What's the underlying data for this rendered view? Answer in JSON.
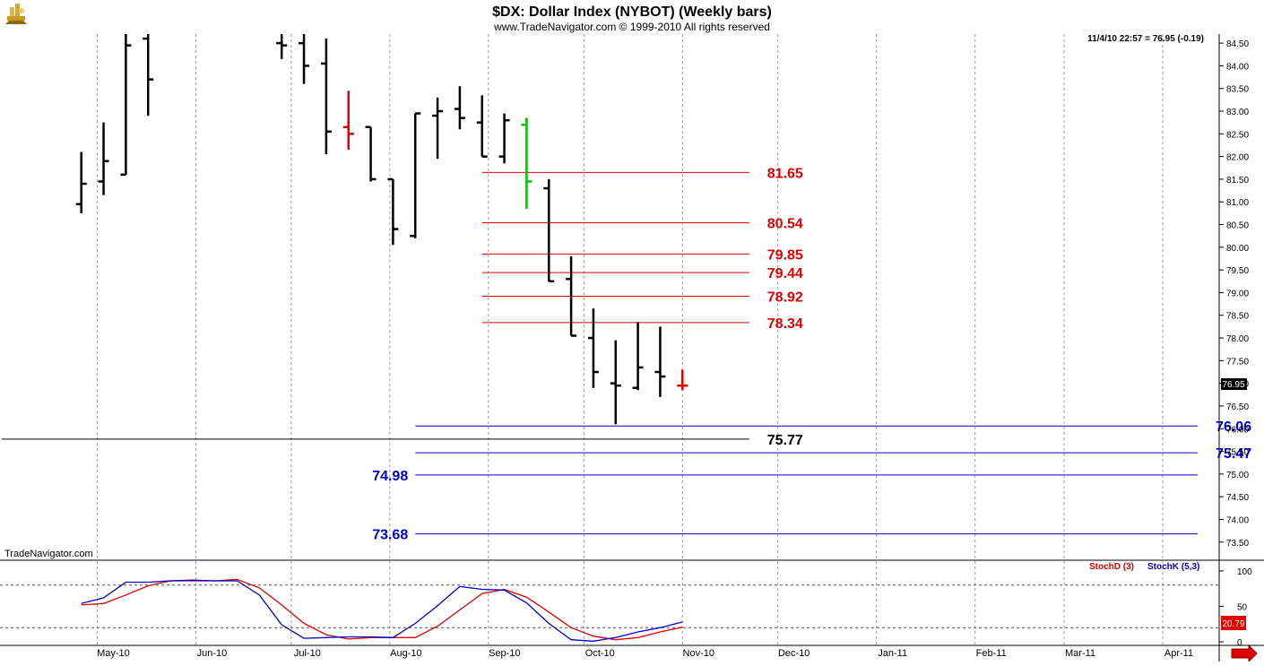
{
  "header": {
    "title": "$DX:  Dollar Index (NYBOT)  (Weekly bars)",
    "copyright": "www.TradeNavigator.com © 1999-2010 All rights reserved",
    "quote": "11/4/10 22:57 = 76.95 (-0.19)",
    "watermark": "TradeNavigator.com",
    "last_price_label": "76.95"
  },
  "colors": {
    "bar": "#000000",
    "bar_up": "#00c000",
    "bar_down": "#e00000",
    "resistance": "#e00000",
    "support": "#0000cc",
    "black_line": "#000000",
    "stoch_d": "#e00000",
    "stoch_k": "#0000cc",
    "grid": "#9a9a9a"
  },
  "chart_data": [
    {
      "type": "ohlc",
      "title": "$DX:  Dollar Index (NYBOT)  (Weekly bars)",
      "ylim": [
        73.1,
        84.7
      ],
      "y_ticks": [
        "84.50",
        "84.00",
        "83.50",
        "83.00",
        "82.50",
        "82.00",
        "81.50",
        "81.00",
        "80.50",
        "80.00",
        "79.50",
        "79.00",
        "78.50",
        "78.00",
        "77.50",
        "77.00",
        "76.50",
        "76.00",
        "75.50",
        "75.00",
        "74.50",
        "74.00",
        "73.50"
      ],
      "x_ticks": [
        "May-10",
        "Jun-10",
        "Jul-10",
        "Aug-10",
        "Sep-10",
        "Oct-10",
        "Nov-10",
        "Dec-10",
        "Jan-11",
        "Feb-11",
        "Mar-11",
        "Apr-11"
      ],
      "bars": [
        {
          "date": "2010-04-26",
          "o": 80.95,
          "h": 82.1,
          "l": 80.75,
          "c": 81.4
        },
        {
          "date": "2010-05-03",
          "o": 81.45,
          "h": 82.75,
          "l": 81.15,
          "c": 81.9
        },
        {
          "date": "2010-05-10",
          "o": 81.6,
          "h": 84.7,
          "l": 81.6,
          "c": 84.45
        },
        {
          "date": "2010-05-17",
          "o": 84.6,
          "h": 84.7,
          "l": 82.9,
          "c": 83.7
        },
        {
          "date": "2010-06-28",
          "o": 84.5,
          "h": 84.7,
          "l": 84.15,
          "c": 84.45
        },
        {
          "date": "2010-07-05",
          "o": 84.5,
          "h": 84.7,
          "l": 83.6,
          "c": 84.0
        },
        {
          "date": "2010-07-12",
          "o": 84.05,
          "h": 84.6,
          "l": 82.05,
          "c": 82.55
        },
        {
          "date": "2010-07-19",
          "o": 82.65,
          "h": 83.45,
          "l": 82.15,
          "c": 82.5
        },
        {
          "date": "2010-07-26",
          "o": 82.65,
          "h": 82.65,
          "l": 81.45,
          "c": 81.5
        },
        {
          "date": "2010-08-02",
          "o": 81.5,
          "h": 81.5,
          "l": 80.05,
          "c": 80.4
        },
        {
          "date": "2010-08-09",
          "o": 80.25,
          "h": 82.95,
          "l": 80.2,
          "c": 82.95
        },
        {
          "date": "2010-08-16",
          "o": 82.9,
          "h": 83.3,
          "l": 81.95,
          "c": 83.0
        },
        {
          "date": "2010-08-23",
          "o": 83.05,
          "h": 83.55,
          "l": 82.6,
          "c": 82.85
        },
        {
          "date": "2010-08-30",
          "o": 82.75,
          "h": 83.35,
          "l": 82.0,
          "c": 82.0
        },
        {
          "date": "2010-09-06",
          "o": 82.0,
          "h": 82.95,
          "l": 81.85,
          "c": 82.8
        },
        {
          "date": "2010-09-13",
          "o": 82.7,
          "h": 82.85,
          "l": 80.85,
          "c": 81.45
        },
        {
          "date": "2010-09-20",
          "o": 81.3,
          "h": 81.5,
          "l": 79.25,
          "c": 79.25
        },
        {
          "date": "2010-09-27",
          "o": 79.3,
          "h": 79.8,
          "l": 78.05,
          "c": 78.05
        },
        {
          "date": "2010-10-04",
          "o": 78.0,
          "h": 78.65,
          "l": 76.9,
          "c": 77.25
        },
        {
          "date": "2010-10-11",
          "o": 77.0,
          "h": 77.95,
          "l": 76.1,
          "c": 76.95
        },
        {
          "date": "2010-10-18",
          "o": 76.9,
          "h": 78.35,
          "l": 76.85,
          "c": 77.35
        },
        {
          "date": "2010-10-25",
          "o": 77.25,
          "h": 78.25,
          "l": 76.7,
          "c": 77.15
        },
        {
          "date": "2010-11-01",
          "o": 76.95,
          "h": 77.3,
          "l": 76.85,
          "c": 76.95
        }
      ],
      "colored_bars": {
        "2010-07-19": "bar_down",
        "2010-09-13": "bar_up",
        "2010-11-01": "bar_down"
      },
      "levels": [
        {
          "value": 81.65,
          "label": "81.65",
          "color": "resistance",
          "x_start": "2010-08-30",
          "x_end": "2010-11-22",
          "label_side": "right"
        },
        {
          "value": 80.54,
          "label": "80.54",
          "color": "resistance",
          "x_start": "2010-08-30",
          "x_end": "2010-11-22",
          "label_side": "right"
        },
        {
          "value": 79.85,
          "label": "79.85",
          "color": "resistance",
          "x_start": "2010-08-30",
          "x_end": "2010-11-22",
          "label_side": "right"
        },
        {
          "value": 79.44,
          "label": "79.44",
          "color": "resistance",
          "x_start": "2010-08-30",
          "x_end": "2010-11-22",
          "label_side": "right"
        },
        {
          "value": 78.92,
          "label": "78.92",
          "color": "resistance",
          "x_start": "2010-08-30",
          "x_end": "2010-11-22",
          "label_side": "right"
        },
        {
          "value": 78.34,
          "label": "78.34",
          "color": "resistance",
          "x_start": "2010-08-30",
          "x_end": "2010-11-22",
          "label_side": "right"
        },
        {
          "value": 76.06,
          "label": "76.06",
          "color": "support",
          "x_start": "2010-08-09",
          "x_end": "2011-04-12",
          "label_side": "right"
        },
        {
          "value": 75.77,
          "label": "75.77",
          "color": "black_line",
          "x_start": "2010-04-01",
          "x_end": "2010-11-22",
          "label_side": "right"
        },
        {
          "value": 75.47,
          "label": "75.47",
          "color": "support",
          "x_start": "2010-08-09",
          "x_end": "2011-04-12",
          "label_side": "right"
        },
        {
          "value": 74.98,
          "label": "74.98",
          "color": "support",
          "x_start": "2010-08-09",
          "x_end": "2011-04-12",
          "label_side": "left"
        },
        {
          "value": 73.68,
          "label": "73.68",
          "color": "support",
          "x_start": "2010-08-09",
          "x_end": "2011-04-12",
          "label_side": "left"
        }
      ]
    },
    {
      "type": "line",
      "ylim": [
        -5,
        115
      ],
      "y_ticks": [
        "100",
        "50",
        "0"
      ],
      "legend": [
        "StochD (3)",
        "StochK (5,3)"
      ],
      "reference_lines": [
        80,
        20
      ],
      "last_value_label": "20.79",
      "series": [
        {
          "name": "StochD (3)",
          "color": "stoch_d",
          "points": [
            [
              "2010-04-26",
              52
            ],
            [
              "2010-05-03",
              54
            ],
            [
              "2010-05-10",
              66
            ],
            [
              "2010-05-17",
              79
            ],
            [
              "2010-05-24",
              86
            ],
            [
              "2010-05-31",
              86
            ],
            [
              "2010-06-07",
              86
            ],
            [
              "2010-06-14",
              88
            ],
            [
              "2010-06-21",
              76
            ],
            [
              "2010-06-28",
              52
            ],
            [
              "2010-07-05",
              26
            ],
            [
              "2010-07-12",
              10
            ],
            [
              "2010-07-19",
              4
            ],
            [
              "2010-07-26",
              6
            ],
            [
              "2010-08-02",
              6
            ],
            [
              "2010-08-09",
              6
            ],
            [
              "2010-08-16",
              22
            ],
            [
              "2010-08-23",
              45
            ],
            [
              "2010-08-30",
              68
            ],
            [
              "2010-09-06",
              74
            ],
            [
              "2010-09-13",
              63
            ],
            [
              "2010-09-20",
              42
            ],
            [
              "2010-09-27",
              20
            ],
            [
              "2010-10-04",
              8
            ],
            [
              "2010-10-11",
              3
            ],
            [
              "2010-10-18",
              6
            ],
            [
              "2010-10-25",
              14
            ],
            [
              "2010-11-01",
              20.79
            ]
          ]
        },
        {
          "name": "StochK (5,3)",
          "color": "stoch_k",
          "points": [
            [
              "2010-04-26",
              54
            ],
            [
              "2010-05-03",
              62
            ],
            [
              "2010-05-10",
              84
            ],
            [
              "2010-05-17",
              84
            ],
            [
              "2010-05-24",
              86
            ],
            [
              "2010-05-31",
              87
            ],
            [
              "2010-06-07",
              86
            ],
            [
              "2010-06-14",
              86
            ],
            [
              "2010-06-21",
              66
            ],
            [
              "2010-06-28",
              24
            ],
            [
              "2010-07-05",
              5
            ],
            [
              "2010-07-12",
              6
            ],
            [
              "2010-07-19",
              7
            ],
            [
              "2010-07-26",
              7
            ],
            [
              "2010-08-02",
              6
            ],
            [
              "2010-08-09",
              26
            ],
            [
              "2010-08-16",
              51
            ],
            [
              "2010-08-23",
              78
            ],
            [
              "2010-08-30",
              74
            ],
            [
              "2010-09-06",
              73
            ],
            [
              "2010-09-13",
              55
            ],
            [
              "2010-09-20",
              26
            ],
            [
              "2010-09-27",
              3
            ],
            [
              "2010-10-04",
              1
            ],
            [
              "2010-10-11",
              6
            ],
            [
              "2010-10-18",
              14
            ],
            [
              "2010-10-25",
              20
            ],
            [
              "2010-11-01",
              28
            ]
          ]
        }
      ]
    }
  ]
}
